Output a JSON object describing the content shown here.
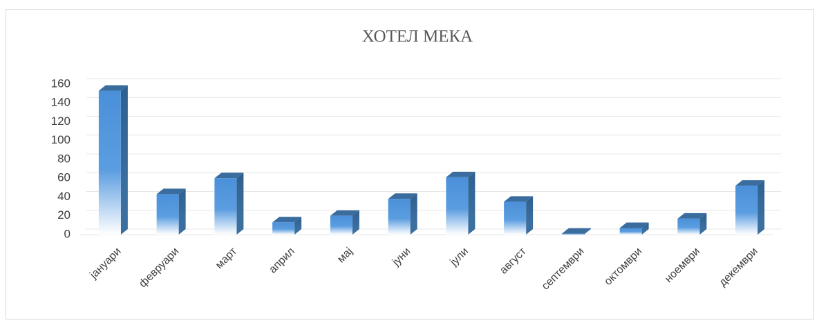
{
  "chart_data": {
    "type": "bar",
    "title": "ХОТЕЛ МЕКА",
    "categories": [
      "јануари",
      "февруари",
      "март",
      "април",
      "мај",
      "јуни",
      "јули",
      "август",
      "септември",
      "октомври",
      "ноември",
      "декември"
    ],
    "values": [
      153,
      43,
      60,
      13,
      20,
      38,
      61,
      35,
      1,
      7,
      17,
      52
    ],
    "color": "#4a90d9",
    "ylim": [
      0,
      160
    ],
    "yticks": [
      0,
      20,
      40,
      60,
      80,
      100,
      120,
      140,
      160
    ],
    "grid": true
  }
}
